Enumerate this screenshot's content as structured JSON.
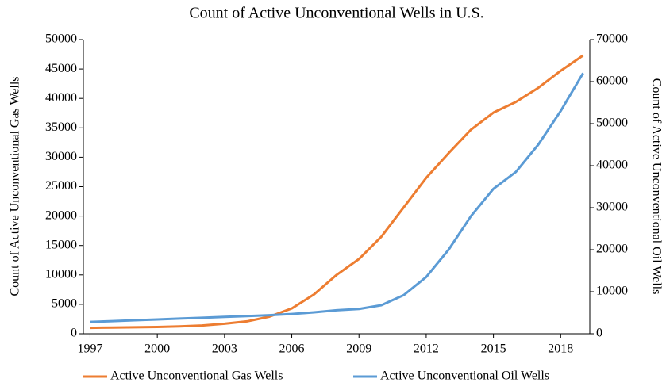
{
  "chart_data": {
    "type": "line",
    "title": "Count of Active Unconventional Wells in U.S.",
    "y_label": "Count of Active Unconventional Gas Wells",
    "y2_label": "Count of Active Unconventional Oil Wells",
    "x": [
      1997,
      1998,
      1999,
      2000,
      2001,
      2002,
      2003,
      2004,
      2005,
      2006,
      2007,
      2008,
      2009,
      2010,
      2011,
      2012,
      2013,
      2014,
      2015,
      2016,
      2017,
      2018,
      2019
    ],
    "xlim": [
      1996.7,
      2019.3
    ],
    "xticks": [
      1997,
      2000,
      2003,
      2006,
      2009,
      2012,
      2015,
      2018
    ],
    "ylim": [
      0,
      50000
    ],
    "yticks": [
      0,
      5000,
      10000,
      15000,
      20000,
      25000,
      30000,
      35000,
      40000,
      45000,
      50000
    ],
    "y2lim": [
      0,
      70000
    ],
    "y2ticks": [
      0,
      10000,
      20000,
      30000,
      40000,
      50000,
      60000,
      70000
    ],
    "legend": "bottom",
    "series": [
      {
        "name": "Active Unconventional Gas Wells",
        "color": "#ed7d31",
        "values": [
          1000,
          1050,
          1100,
          1150,
          1250,
          1400,
          1700,
          2100,
          2900,
          4300,
          6700,
          10000,
          12700,
          16500,
          21500,
          26500,
          30700,
          34700,
          37600,
          39400,
          41800,
          44700,
          47300
        ]
      },
      {
        "name": "Active Unconventional Oil Wells",
        "color": "#5b9bd5",
        "axis": "y2",
        "values": [
          2800,
          3000,
          3200,
          3400,
          3600,
          3800,
          4000,
          4200,
          4400,
          4700,
          5100,
          5600,
          5900,
          6800,
          9200,
          13500,
          20000,
          28000,
          34500,
          38500,
          45000,
          53000,
          62000
        ]
      }
    ]
  }
}
